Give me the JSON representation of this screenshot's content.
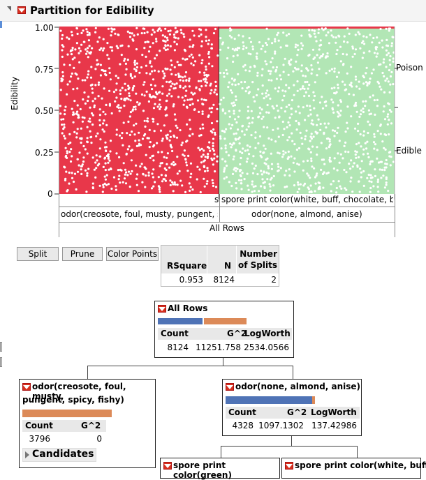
{
  "title": "Partition for Edibility",
  "chart": {
    "ylabel": "Edibility",
    "yticks": [
      "1.00",
      "0.75",
      "0.50",
      "0.25",
      "0"
    ],
    "right_labels": [
      "Poison",
      "Edible"
    ],
    "leaf_labels": [
      "s",
      "spore print color(white, buff, chocolate, bl"
    ],
    "split_labels": [
      "odor(creosote, foul, musty, pungent, s",
      "odor(none, almond, anise)"
    ],
    "root_label": "All Rows",
    "colors": {
      "poison": "#e8374a",
      "edible": "#b2e6b5"
    }
  },
  "buttons": {
    "split": "Split",
    "prune": "Prune",
    "color_points": "Color Points"
  },
  "summary": {
    "headers": [
      "RSquare",
      "N",
      "Number of Splits"
    ],
    "values": [
      "0.953",
      "8124",
      "2"
    ]
  },
  "root_node": {
    "title": "All Rows",
    "headers": [
      "Count",
      "G^2",
      "LogWorth"
    ],
    "values": [
      "8124",
      "11251.758",
      "2534.0566"
    ],
    "edible_fraction": 0.52
  },
  "left_node": {
    "title_line1": "odor(creosote, foul, musty,",
    "title_line2": "pungent, spicy, fishy)",
    "headers": [
      "Count",
      "G^2"
    ],
    "values": [
      "3796",
      "0"
    ],
    "candidates": "Candidates",
    "edible_fraction": 0.0
  },
  "right_node": {
    "title": "odor(none, almond, anise)",
    "headers": [
      "Count",
      "G^2",
      "LogWorth"
    ],
    "values": [
      "4328",
      "1097.1302",
      "137.42986"
    ],
    "edible_fraction": 0.97
  },
  "child_nodes": [
    "spore print color(green)",
    "spore print color(white, buff,"
  ]
}
